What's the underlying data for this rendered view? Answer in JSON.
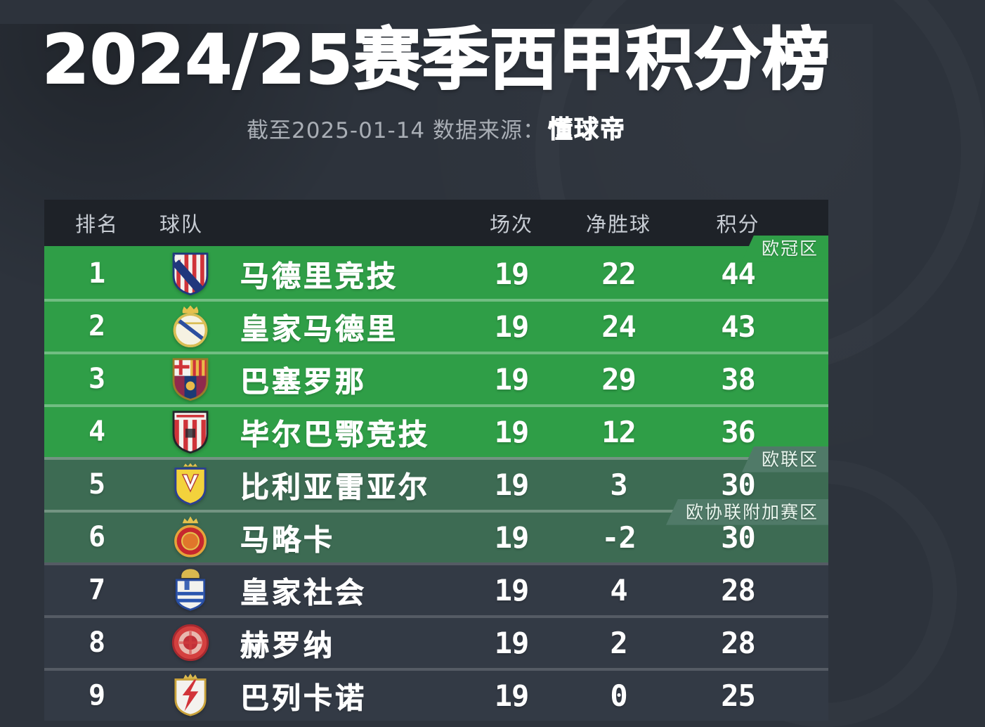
{
  "page": {
    "title": "2024/25赛季西甲积分榜",
    "subtitle_prefix": "截至2025-01-14 数据来源：",
    "subtitle_source": "懂球帝"
  },
  "colors": {
    "page_bg": "#2d333c",
    "header_bg": "#1e2228",
    "champions_zone": "#2f9e47",
    "europa_zone": "#3d6b53",
    "europa_tab": "#507a68",
    "dark_row": "#333a45",
    "title_text": "#ffffff",
    "subtitle_gray": "#a9aeb5"
  },
  "table": {
    "columns": [
      "排名",
      "球队",
      "场次",
      "净胜球",
      "积分"
    ],
    "rows": [
      {
        "rank": "1",
        "team": "马德里竞技",
        "badge": "atletico",
        "played": "19",
        "gd": "22",
        "points": "44",
        "zone": "champions",
        "zone_label": "欧冠区"
      },
      {
        "rank": "2",
        "team": "皇家马德里",
        "badge": "real-madrid",
        "played": "19",
        "gd": "24",
        "points": "43",
        "zone": "champions"
      },
      {
        "rank": "3",
        "team": "巴塞罗那",
        "badge": "barcelona",
        "played": "19",
        "gd": "29",
        "points": "38",
        "zone": "champions"
      },
      {
        "rank": "4",
        "team": "毕尔巴鄂竞技",
        "badge": "athletic",
        "played": "19",
        "gd": "12",
        "points": "36",
        "zone": "champions"
      },
      {
        "rank": "5",
        "team": "比利亚雷亚尔",
        "badge": "villarreal",
        "played": "19",
        "gd": "3",
        "points": "30",
        "zone": "europa",
        "zone_label": "欧联区"
      },
      {
        "rank": "6",
        "team": "马略卡",
        "badge": "mallorca",
        "played": "19",
        "gd": "-2",
        "points": "30",
        "zone": "europa",
        "zone_label": "欧协联附加赛区"
      },
      {
        "rank": "7",
        "team": "皇家社会",
        "badge": "real-sociedad",
        "played": "19",
        "gd": "4",
        "points": "28",
        "zone": "none"
      },
      {
        "rank": "8",
        "team": "赫罗纳",
        "badge": "girona",
        "played": "19",
        "gd": "2",
        "points": "28",
        "zone": "none"
      },
      {
        "rank": "9",
        "team": "巴列卡诺",
        "badge": "rayo",
        "played": "19",
        "gd": "0",
        "points": "25",
        "zone": "none"
      }
    ]
  },
  "chart_data": {
    "type": "table",
    "title": "2024/25赛季西甲积分榜",
    "subtitle": "截至2025-01-14 数据来源：懂球帝",
    "columns": [
      "排名",
      "球队",
      "场次",
      "净胜球",
      "积分"
    ],
    "rows": [
      [
        1,
        "马德里竞技",
        19,
        22,
        44
      ],
      [
        2,
        "皇家马德里",
        19,
        24,
        43
      ],
      [
        3,
        "巴塞罗那",
        19,
        29,
        38
      ],
      [
        4,
        "毕尔巴鄂竞技",
        19,
        12,
        36
      ],
      [
        5,
        "比利亚雷亚尔",
        19,
        3,
        30
      ],
      [
        6,
        "马略卡",
        19,
        -2,
        30
      ],
      [
        7,
        "皇家社会",
        19,
        4,
        28
      ],
      [
        8,
        "赫罗纳",
        19,
        2,
        28
      ],
      [
        9,
        "巴列卡诺",
        19,
        0,
        25
      ]
    ],
    "zones": [
      {
        "label": "欧冠区",
        "ranks": [
          1,
          4
        ],
        "color": "#2f9e47"
      },
      {
        "label": "欧联区",
        "ranks": [
          5,
          5
        ],
        "color": "#3d6b53"
      },
      {
        "label": "欧协联附加赛区",
        "ranks": [
          6,
          6
        ],
        "color": "#3d6b53"
      }
    ]
  }
}
